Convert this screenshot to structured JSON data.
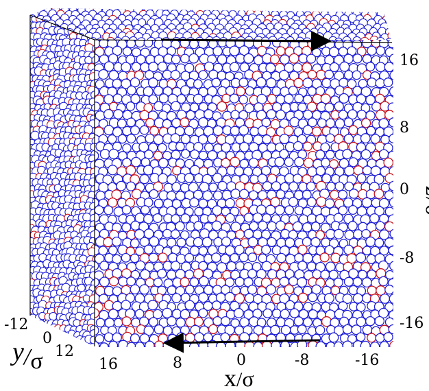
{
  "colors": {
    "majority_particle": "#1f1fd6",
    "minority_particle": "#c8141e",
    "box_edge": "#000000",
    "arrow": "#000000",
    "background": "#ffffff"
  },
  "axes": {
    "x": {
      "label_main": "x",
      "label_unit": "σ",
      "separator": "/",
      "ticks": [
        "16",
        "8",
        "0",
        "-8",
        "-16"
      ]
    },
    "y": {
      "label_main": "y",
      "label_unit": "σ",
      "separator": "/",
      "ticks": [
        "-12",
        "0",
        "12"
      ]
    },
    "z": {
      "label_main": "z",
      "label_unit": "σ",
      "separator": "/",
      "ticks": [
        "16",
        "8",
        "0",
        "-8",
        "-16"
      ]
    }
  },
  "particles": {
    "minority_fraction": 0.12
  }
}
